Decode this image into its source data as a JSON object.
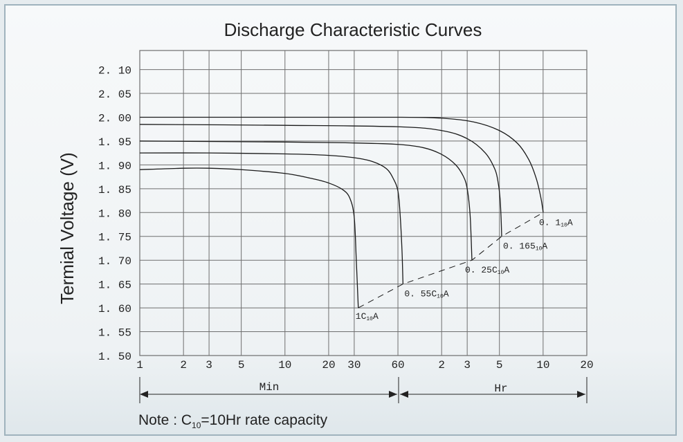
{
  "chart_data": {
    "type": "line",
    "title": "Discharge Characteristic Curves",
    "ylabel": "Termial Voltage (V)",
    "xlabel": "",
    "ylim": [
      1.5,
      2.14
    ],
    "xlim_minutes": [
      1,
      1200
    ],
    "x_scale": "log",
    "grid": true,
    "y_ticks": [
      "2. 10",
      "2. 05",
      "2. 00",
      "1. 95",
      "1. 90",
      "1. 85",
      "1. 80",
      "1. 75",
      "1. 70",
      "1. 65",
      "1. 60",
      "1. 55",
      "1. 50"
    ],
    "y_tick_values": [
      2.1,
      2.05,
      2.0,
      1.95,
      1.9,
      1.85,
      1.8,
      1.75,
      1.7,
      1.65,
      1.6,
      1.55,
      1.5
    ],
    "x_ticks": [
      "1",
      "2",
      "3",
      "5",
      "10",
      "20",
      "30",
      "60",
      "2",
      "3",
      "5",
      "10",
      "20"
    ],
    "x_tick_minutes": [
      1,
      2,
      3,
      5,
      10,
      20,
      30,
      60,
      120,
      180,
      300,
      600,
      1200
    ],
    "range_labels": {
      "min": "Min",
      "hr": "Hr"
    },
    "series": [
      {
        "name": "1C10A",
        "label_main": "1C",
        "label_sub": "10",
        "label_end": "A",
        "x": [
          1,
          2,
          3,
          5,
          10,
          15,
          20,
          25,
          28,
          30,
          31,
          32
        ],
        "y": [
          1.89,
          1.893,
          1.893,
          1.89,
          1.882,
          1.872,
          1.862,
          1.848,
          1.83,
          1.79,
          1.7,
          1.6
        ]
      },
      {
        "name": "0.55C10A",
        "label_main": "0. 55C",
        "label_sub": "10",
        "label_end": "A",
        "x": [
          1,
          3,
          10,
          20,
          30,
          40,
          50,
          56,
          60,
          62,
          64,
          65
        ],
        "y": [
          1.925,
          1.925,
          1.923,
          1.92,
          1.915,
          1.907,
          1.892,
          1.87,
          1.845,
          1.8,
          1.72,
          1.65
        ]
      },
      {
        "name": "0.25C10A",
        "label_main": "0. 25C",
        "label_sub": "10",
        "label_end": "A",
        "x": [
          1,
          10,
          30,
          60,
          90,
          120,
          150,
          170,
          180,
          188,
          192,
          194
        ],
        "y": [
          1.95,
          1.948,
          1.946,
          1.943,
          1.936,
          1.922,
          1.9,
          1.875,
          1.85,
          1.8,
          1.74,
          1.7
        ]
      },
      {
        "name": "0.165C10A",
        "label_main": "0. 165",
        "label_sub": "10",
        "label_end": "A",
        "x": [
          1,
          10,
          60,
          120,
          180,
          240,
          280,
          295,
          303,
          308,
          311
        ],
        "y": [
          1.985,
          1.983,
          1.98,
          1.972,
          1.955,
          1.925,
          1.89,
          1.86,
          1.83,
          1.79,
          1.75
        ]
      },
      {
        "name": "0.1C10A",
        "label_main": "0. 1",
        "label_sub": "10",
        "label_end": "A",
        "x": [
          1,
          10,
          60,
          120,
          200,
          300,
          400,
          480,
          540,
          580,
          601
        ],
        "y": [
          2.0,
          2.0,
          2.0,
          1.998,
          1.99,
          1.972,
          1.945,
          1.91,
          1.87,
          1.83,
          1.8
        ]
      }
    ],
    "endpoint_line": {
      "style": "dashed",
      "x": [
        32,
        65,
        194,
        311,
        601
      ],
      "y": [
        1.6,
        1.65,
        1.7,
        1.75,
        1.8
      ]
    }
  },
  "note": {
    "prefix": "Note :  C",
    "sub": "10",
    "suffix": "=10Hr  rate  capacity"
  },
  "colors": {
    "line": "#1a1a1a",
    "grid": "#6e6e6e",
    "background": "#f3f6f7"
  }
}
